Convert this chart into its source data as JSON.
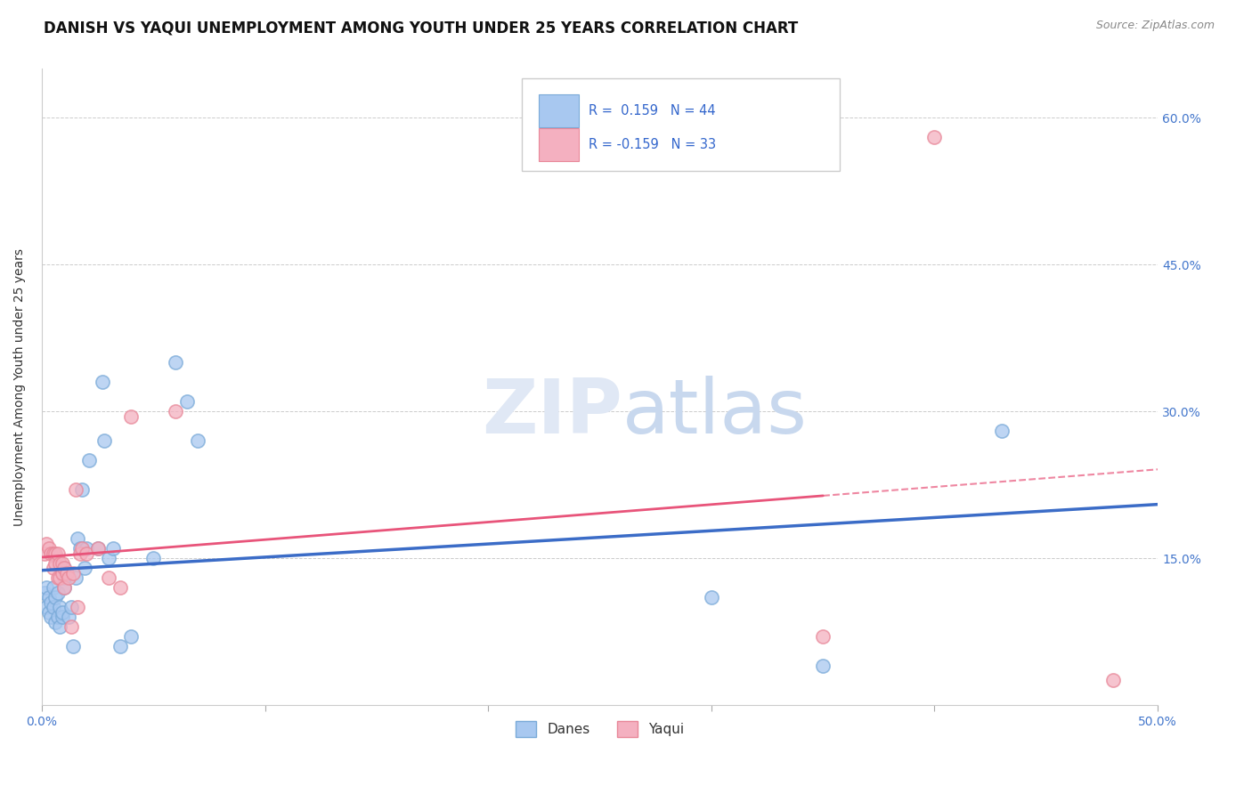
{
  "title": "DANISH VS YAQUI UNEMPLOYMENT AMONG YOUTH UNDER 25 YEARS CORRELATION CHART",
  "source": "Source: ZipAtlas.com",
  "ylabel": "Unemployment Among Youth under 25 years",
  "xlim": [
    0.0,
    0.5
  ],
  "ylim": [
    0.0,
    0.65
  ],
  "x_ticks": [
    0.0,
    0.1,
    0.2,
    0.3,
    0.4,
    0.5
  ],
  "x_tick_labels": [
    "0.0%",
    "",
    "",
    "",
    "",
    "50.0%"
  ],
  "y_ticks": [
    0.0,
    0.15,
    0.3,
    0.45,
    0.6
  ],
  "y_tick_labels_right": [
    "",
    "15.0%",
    "30.0%",
    "45.0%",
    "60.0%"
  ],
  "background_color": "#ffffff",
  "legend_R_blue": "0.159",
  "legend_N_blue": "44",
  "legend_R_pink": "-0.159",
  "legend_N_pink": "33",
  "blue_scatter_color": "#A8C8F0",
  "blue_scatter_edge": "#7AAAD8",
  "pink_scatter_color": "#F4B0C0",
  "pink_scatter_edge": "#E88899",
  "blue_line_color": "#3B6CC7",
  "pink_line_color": "#E8547A",
  "danes_x": [
    0.001,
    0.002,
    0.002,
    0.003,
    0.003,
    0.004,
    0.004,
    0.005,
    0.005,
    0.006,
    0.006,
    0.007,
    0.007,
    0.008,
    0.008,
    0.009,
    0.009,
    0.01,
    0.01,
    0.01,
    0.012,
    0.013,
    0.014,
    0.015,
    0.016,
    0.017,
    0.018,
    0.019,
    0.02,
    0.021,
    0.025,
    0.027,
    0.028,
    0.03,
    0.032,
    0.035,
    0.04,
    0.05,
    0.06,
    0.065,
    0.07,
    0.3,
    0.35,
    0.43
  ],
  "danes_y": [
    0.115,
    0.1,
    0.12,
    0.11,
    0.095,
    0.105,
    0.09,
    0.12,
    0.1,
    0.11,
    0.085,
    0.115,
    0.09,
    0.1,
    0.08,
    0.09,
    0.095,
    0.13,
    0.14,
    0.12,
    0.09,
    0.1,
    0.06,
    0.13,
    0.17,
    0.16,
    0.22,
    0.14,
    0.16,
    0.25,
    0.16,
    0.33,
    0.27,
    0.15,
    0.16,
    0.06,
    0.07,
    0.15,
    0.35,
    0.31,
    0.27,
    0.11,
    0.04,
    0.28
  ],
  "yaqui_x": [
    0.001,
    0.002,
    0.003,
    0.004,
    0.005,
    0.005,
    0.006,
    0.006,
    0.007,
    0.007,
    0.008,
    0.008,
    0.009,
    0.009,
    0.01,
    0.01,
    0.011,
    0.012,
    0.013,
    0.014,
    0.015,
    0.016,
    0.017,
    0.018,
    0.02,
    0.025,
    0.03,
    0.035,
    0.04,
    0.06,
    0.35,
    0.4,
    0.48
  ],
  "yaqui_y": [
    0.155,
    0.165,
    0.16,
    0.155,
    0.155,
    0.14,
    0.155,
    0.145,
    0.155,
    0.13,
    0.145,
    0.13,
    0.145,
    0.135,
    0.14,
    0.12,
    0.135,
    0.13,
    0.08,
    0.135,
    0.22,
    0.1,
    0.155,
    0.16,
    0.155,
    0.16,
    0.13,
    0.12,
    0.295,
    0.3,
    0.07,
    0.58,
    0.025
  ],
  "title_fontsize": 12,
  "axis_label_fontsize": 10,
  "tick_fontsize": 10,
  "source_fontsize": 9
}
